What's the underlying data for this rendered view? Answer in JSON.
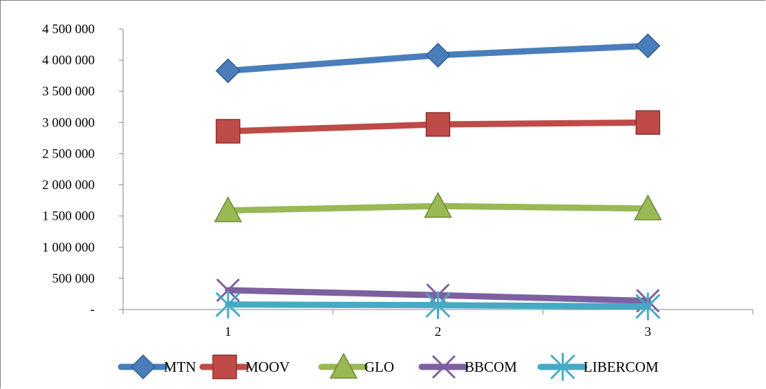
{
  "chart_data": {
    "type": "line",
    "categories": [
      "1",
      "2",
      "3"
    ],
    "ylim": [
      0,
      4500000
    ],
    "yticks": [
      0,
      500000,
      1000000,
      1500000,
      2000000,
      2500000,
      3000000,
      3500000,
      4000000,
      4500000
    ],
    "ytick_labels": [
      "-",
      "500 000",
      "1 000 000",
      "1 500 000",
      "2 000 000",
      "2 500 000",
      "3 000 000",
      "3 500 000",
      "4 000 000",
      "4 500 000"
    ],
    "grid": false,
    "legend_position": "bottom",
    "series": [
      {
        "name": "MTN",
        "values": [
          3830000,
          4080000,
          4230000
        ],
        "color": "#4a7ebb",
        "marker": "diamond"
      },
      {
        "name": "MOOV",
        "values": [
          2860000,
          2970000,
          3000000
        ],
        "color": "#be4b48",
        "marker": "square"
      },
      {
        "name": "GLO",
        "values": [
          1590000,
          1660000,
          1620000
        ],
        "color": "#98b954",
        "marker": "triangle"
      },
      {
        "name": "BBCOM",
        "values": [
          310000,
          230000,
          140000
        ],
        "color": "#7d60a0",
        "marker": "x"
      },
      {
        "name": "LIBERCOM",
        "values": [
          80000,
          70000,
          50000
        ],
        "color": "#46aac5",
        "marker": "star"
      }
    ]
  }
}
